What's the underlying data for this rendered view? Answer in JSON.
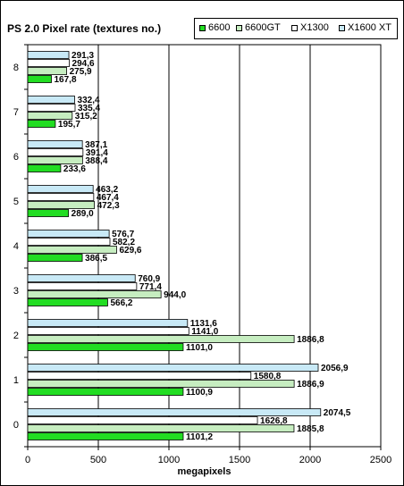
{
  "chart_data": {
    "type": "bar",
    "orientation": "horizontal",
    "title": "PS 2.0 Pixel rate (textures no.)",
    "xlabel": "megapixels",
    "ylabel": "",
    "xlim": [
      0,
      2500
    ],
    "xticks": [
      "0",
      "500",
      "1000",
      "1500",
      "2000",
      "2500"
    ],
    "grid": true,
    "legend_placement": "top-right",
    "categories": [
      "8",
      "7",
      "6",
      "5",
      "4",
      "3",
      "2",
      "1",
      "0"
    ],
    "series": [
      {
        "name": "6600",
        "color": "#22dd22",
        "values": [
          167.8,
          195.7,
          233.6,
          289.0,
          386.5,
          566.2,
          1101.0,
          1100.9,
          1101.2
        ],
        "labels": [
          "167,8",
          "195,7",
          "233,6",
          "289,0",
          "386,5",
          "566,2",
          "1101,0",
          "1100,9",
          "1101,2"
        ]
      },
      {
        "name": "6600GT",
        "color": "#c6edc0",
        "values": [
          275.9,
          315.2,
          388.4,
          472.3,
          629.6,
          944.0,
          1886.8,
          1886.9,
          1885.8
        ],
        "labels": [
          "275,9",
          "315,2",
          "388,4",
          "472,3",
          "629,6",
          "944,0",
          "1886,8",
          "1886,9",
          "1885,8"
        ]
      },
      {
        "name": "X1300",
        "color": "#ffffff",
        "values": [
          294.6,
          335.4,
          391.4,
          467.4,
          582.2,
          771.4,
          1141.0,
          1580.8,
          1626.8
        ],
        "labels": [
          "294,6",
          "335,4",
          "391,4",
          "467,4",
          "582,2",
          "771,4",
          "1141,0",
          "1580,8",
          "1626,8"
        ]
      },
      {
        "name": "X1600 XT",
        "color": "#c8e9f6",
        "values": [
          291.3,
          332.4,
          387.1,
          463.2,
          576.7,
          760.9,
          1131.6,
          2056.9,
          2074.5
        ],
        "labels": [
          "291,3",
          "332,4",
          "387,1",
          "463,2",
          "576,7",
          "760,9",
          "1131,6",
          "2056,9",
          "2074,5"
        ]
      }
    ]
  }
}
